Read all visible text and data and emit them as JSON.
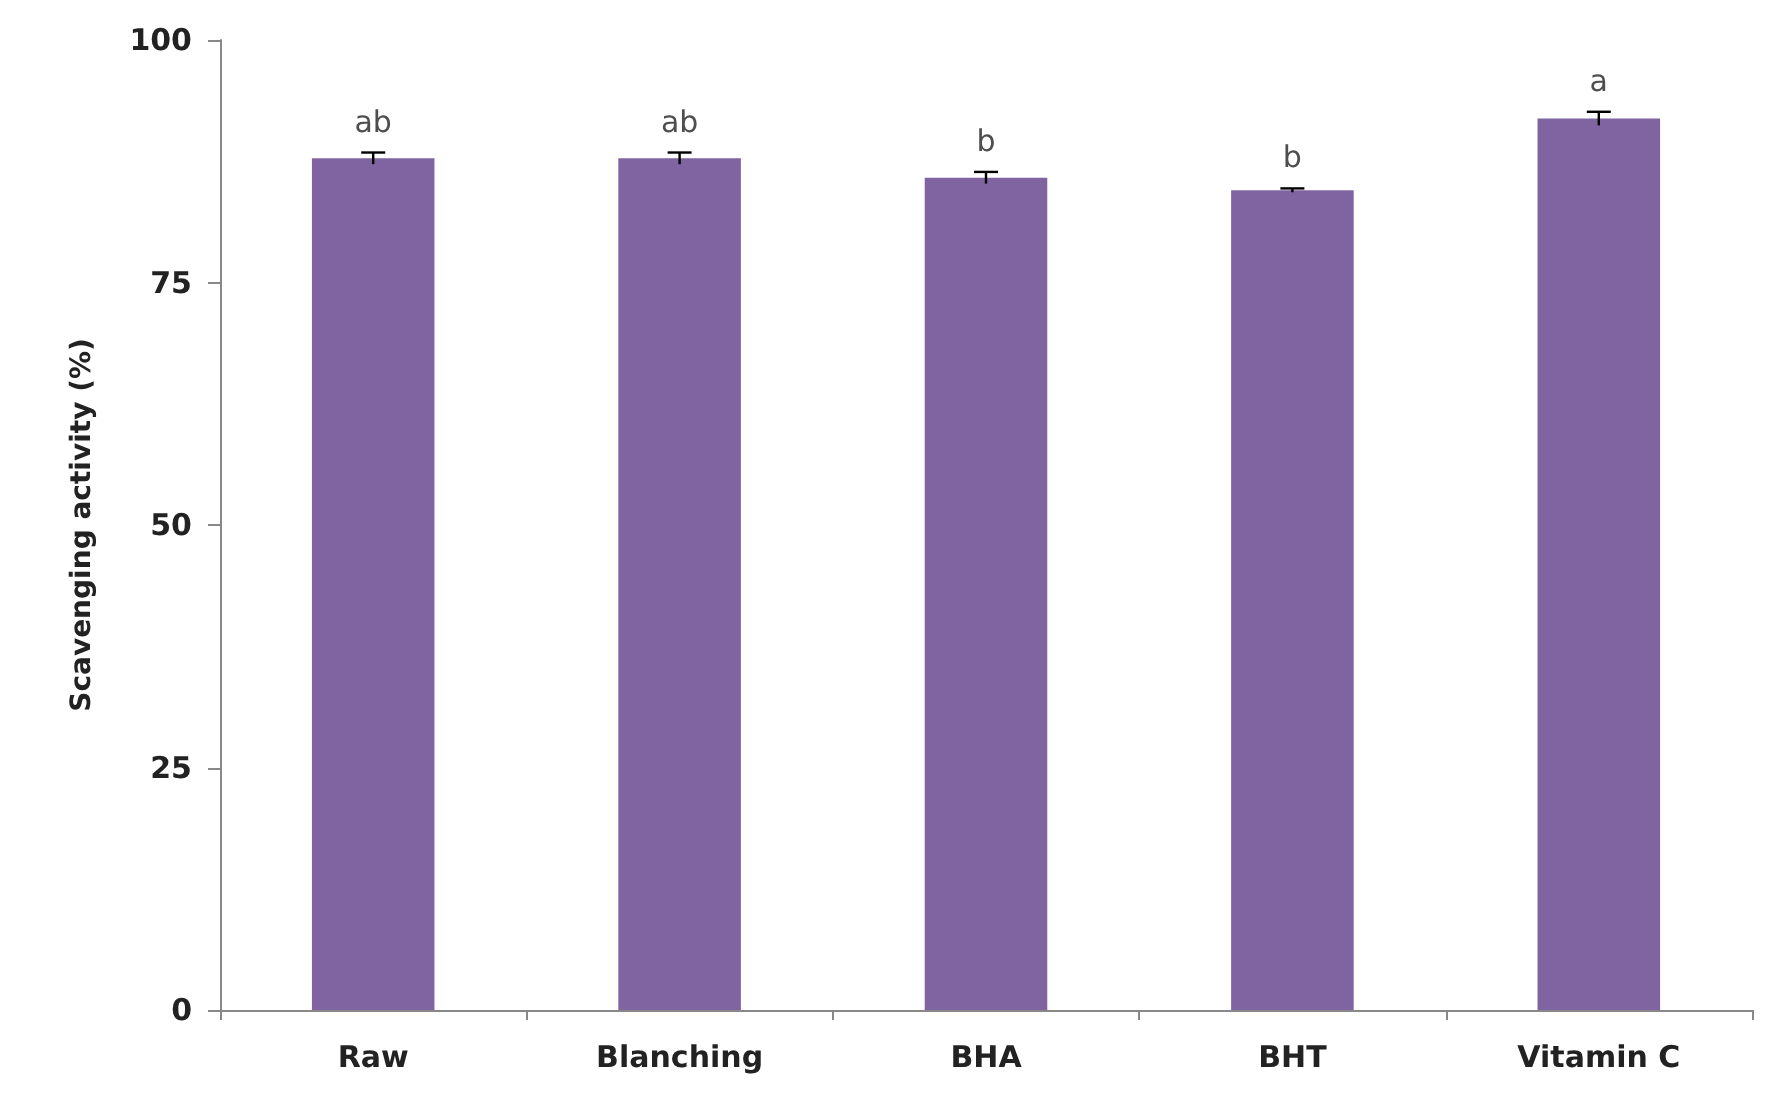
{
  "chart_data": {
    "type": "bar",
    "ylabel": "Scavenging activity (%)",
    "categories": [
      "Raw",
      "Blanching",
      "BHA",
      "BHT",
      "Vitamin C"
    ],
    "values": [
      87.8,
      87.8,
      85.8,
      84.5,
      91.9
    ],
    "errors": [
      0.6,
      0.6,
      0.6,
      0.2,
      0.7
    ],
    "color": "#8064a2",
    "ylim": [
      0,
      100
    ],
    "yticks": [
      0,
      25,
      50,
      75,
      100
    ],
    "grid": false,
    "annotations": [
      {
        "text": "ab",
        "x": "Raw",
        "y": 87.8
      },
      {
        "text": "ab",
        "x": "Blanching",
        "y": 87.8
      },
      {
        "text": "b",
        "x": "BHA",
        "y": 85.8
      },
      {
        "text": "b",
        "x": "BHT",
        "y": 84.5
      },
      {
        "text": "a",
        "x": "Vitamin C",
        "y": 91.9
      }
    ]
  }
}
